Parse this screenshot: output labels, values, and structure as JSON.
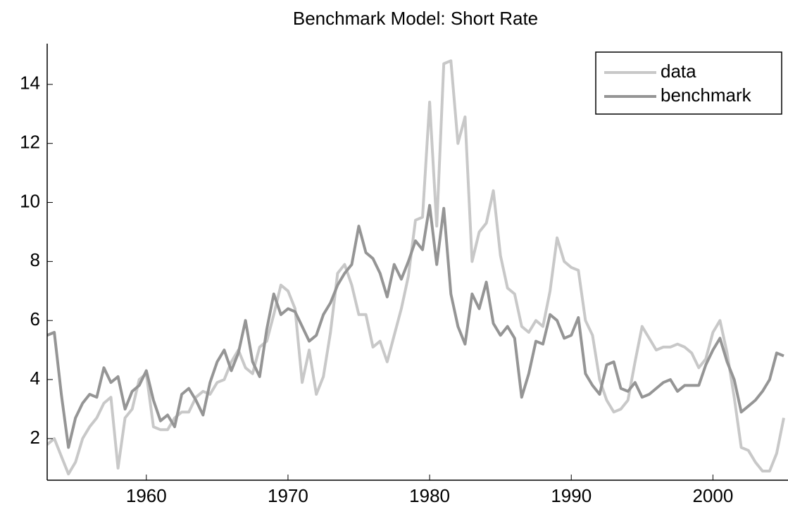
{
  "chart_data": {
    "type": "line",
    "title": "Benchmark Model: Short Rate",
    "x": [
      1953.0,
      1953.5,
      1954.0,
      1954.5,
      1955.0,
      1955.5,
      1956.0,
      1956.5,
      1957.0,
      1957.5,
      1958.0,
      1958.5,
      1959.0,
      1959.5,
      1960.0,
      1960.5,
      1961.0,
      1961.5,
      1962.0,
      1962.5,
      1963.0,
      1963.5,
      1964.0,
      1964.5,
      1965.0,
      1965.5,
      1966.0,
      1966.5,
      1967.0,
      1967.5,
      1968.0,
      1968.5,
      1969.0,
      1969.5,
      1970.0,
      1970.5,
      1971.0,
      1971.5,
      1972.0,
      1972.5,
      1973.0,
      1973.5,
      1974.0,
      1974.5,
      1975.0,
      1975.5,
      1976.0,
      1976.5,
      1977.0,
      1977.5,
      1978.0,
      1978.5,
      1979.0,
      1979.5,
      1980.0,
      1980.5,
      1981.0,
      1981.5,
      1982.0,
      1982.5,
      1983.0,
      1983.5,
      1984.0,
      1984.5,
      1985.0,
      1985.5,
      1986.0,
      1986.5,
      1987.0,
      1987.5,
      1988.0,
      1988.5,
      1989.0,
      1989.5,
      1990.0,
      1990.5,
      1991.0,
      1991.5,
      1992.0,
      1992.5,
      1993.0,
      1993.5,
      1994.0,
      1994.5,
      1995.0,
      1995.5,
      1996.0,
      1996.5,
      1997.0,
      1997.5,
      1998.0,
      1998.5,
      1999.0,
      1999.5,
      2000.0,
      2000.5,
      2001.0,
      2001.5,
      2002.0,
      2002.5,
      2003.0,
      2003.5,
      2004.0,
      2004.5,
      2005.0
    ],
    "series": [
      {
        "name": "data",
        "color": "#c8c8c8",
        "values": [
          1.8,
          2.0,
          1.4,
          0.8,
          1.2,
          2.0,
          2.4,
          2.7,
          3.2,
          3.4,
          1.0,
          2.7,
          3.0,
          4.0,
          4.2,
          2.4,
          2.3,
          2.3,
          2.7,
          2.9,
          2.9,
          3.4,
          3.6,
          3.5,
          3.9,
          4.0,
          4.6,
          5.0,
          4.4,
          4.2,
          5.1,
          5.3,
          6.2,
          7.2,
          7.0,
          6.4,
          3.9,
          5.0,
          3.5,
          4.1,
          5.6,
          7.6,
          7.9,
          7.2,
          6.2,
          6.2,
          5.1,
          5.3,
          4.6,
          5.5,
          6.4,
          7.5,
          9.4,
          9.5,
          13.4,
          9.2,
          14.7,
          14.8,
          12.0,
          12.9,
          8.0,
          9.0,
          9.3,
          10.4,
          8.2,
          7.1,
          6.9,
          5.8,
          5.6,
          6.0,
          5.8,
          7.0,
          8.8,
          8.0,
          7.8,
          7.7,
          6.0,
          5.5,
          4.0,
          3.3,
          2.9,
          3.0,
          3.3,
          4.6,
          5.8,
          5.4,
          5.0,
          5.1,
          5.1,
          5.2,
          5.1,
          4.9,
          4.4,
          4.7,
          5.6,
          6.0,
          4.9,
          3.4,
          1.7,
          1.6,
          1.2,
          0.9,
          0.9,
          1.5,
          2.7
        ]
      },
      {
        "name": "benchmark",
        "color": "#959595",
        "values": [
          5.5,
          5.6,
          3.5,
          1.7,
          2.7,
          3.2,
          3.5,
          3.4,
          4.4,
          3.9,
          4.1,
          3.0,
          3.6,
          3.8,
          4.3,
          3.3,
          2.6,
          2.8,
          2.4,
          3.5,
          3.7,
          3.3,
          2.8,
          3.9,
          4.6,
          5.0,
          4.3,
          4.9,
          6.0,
          4.6,
          4.1,
          5.7,
          6.9,
          6.2,
          6.4,
          6.3,
          5.8,
          5.3,
          5.5,
          6.2,
          6.6,
          7.2,
          7.6,
          7.9,
          9.2,
          8.3,
          8.1,
          7.6,
          6.8,
          7.9,
          7.4,
          8.0,
          8.7,
          8.4,
          9.9,
          7.9,
          9.8,
          6.9,
          5.8,
          5.2,
          6.9,
          6.4,
          7.3,
          5.9,
          5.5,
          5.8,
          5.4,
          3.4,
          4.2,
          5.3,
          5.2,
          6.2,
          6.0,
          5.4,
          5.5,
          6.1,
          4.2,
          3.8,
          3.5,
          4.5,
          4.6,
          3.7,
          3.6,
          3.9,
          3.4,
          3.5,
          3.7,
          3.9,
          4.0,
          3.6,
          3.8,
          3.8,
          3.8,
          4.5,
          5.0,
          5.4,
          4.6,
          4.0,
          2.9,
          3.1,
          3.3,
          3.6,
          4.0,
          4.9,
          4.8
        ]
      }
    ],
    "xlim": [
      1953,
      2005.3
    ],
    "xticks": [
      1960,
      1970,
      1980,
      1990,
      2000
    ],
    "ylim": [
      0.59,
      15.38
    ],
    "yticks": [
      2,
      4,
      6,
      8,
      10,
      12,
      14
    ],
    "legend": "northeast"
  }
}
